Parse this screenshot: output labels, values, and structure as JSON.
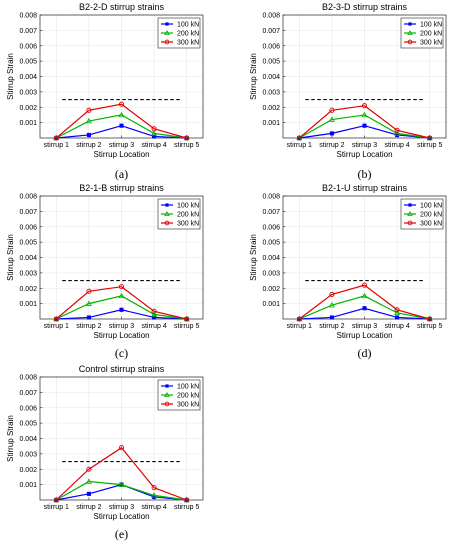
{
  "chart_data": [
    {
      "type": "line",
      "title": "B2-2-D stirrup strains",
      "xlabel": "Stirrup Location",
      "ylabel": "Stirrup Strain",
      "caption": "(a)",
      "categories": [
        "stirrup 1",
        "stirrup 2",
        "stirrup 3",
        "stirrup 4",
        "stirrup 5"
      ],
      "ylim": [
        0,
        0.008
      ],
      "yticks": [
        0.001,
        0.002,
        0.003,
        0.004,
        0.005,
        0.006,
        0.007,
        0.008
      ],
      "ytick_labels": [
        "0.001",
        "0.002",
        "0.003",
        "0.004",
        "0.005",
        "0.006",
        "0.007",
        "0.008"
      ],
      "reference_line": 0.0025,
      "grid": true,
      "legend": "top-right",
      "series": [
        {
          "name": "100 kN",
          "color": "#0000ff",
          "marker": "square",
          "values": [
            0.0,
            0.0002,
            0.0008,
            0.0001,
            0.0
          ]
        },
        {
          "name": "200 kN",
          "color": "#00b400",
          "marker": "triangle",
          "values": [
            0.0,
            0.0011,
            0.0015,
            0.0003,
            0.0
          ]
        },
        {
          "name": "300 kN",
          "color": "#e00000",
          "marker": "circle",
          "values": [
            0.0,
            0.0018,
            0.0022,
            0.0006,
            0.0
          ]
        }
      ]
    },
    {
      "type": "line",
      "title": "B2-3-D stirrup strains",
      "xlabel": "Stirrup Location",
      "ylabel": "Stirrup Strain",
      "caption": "(b)",
      "categories": [
        "stirrup 1",
        "stirrup 2",
        "stirrup 3",
        "stirrup 4",
        "stirrup 5"
      ],
      "ylim": [
        0,
        0.008
      ],
      "yticks": [
        0.001,
        0.002,
        0.003,
        0.004,
        0.005,
        0.006,
        0.007,
        0.008
      ],
      "ytick_labels": [
        "0.001",
        "0.002",
        "0.003",
        "0.004",
        "0.005",
        "0.006",
        "0.007",
        "0.008"
      ],
      "reference_line": 0.0025,
      "grid": true,
      "legend": "top-right",
      "series": [
        {
          "name": "100 kN",
          "color": "#0000ff",
          "marker": "square",
          "values": [
            0.0,
            0.0003,
            0.0008,
            0.0002,
            0.0
          ]
        },
        {
          "name": "200 kN",
          "color": "#00b400",
          "marker": "triangle",
          "values": [
            0.0,
            0.0012,
            0.0015,
            0.0003,
            0.0
          ]
        },
        {
          "name": "300 kN",
          "color": "#e00000",
          "marker": "circle",
          "values": [
            0.0,
            0.0018,
            0.0021,
            0.0005,
            0.0
          ]
        }
      ]
    },
    {
      "type": "line",
      "title": "B2-1-B stirrup strains",
      "xlabel": "Stirrup Location",
      "ylabel": "Stirrup Strain",
      "caption": "(c)",
      "categories": [
        "stirrup 1",
        "stirrup 2",
        "stirrup 3",
        "stirrup 4",
        "stirrup 5"
      ],
      "ylim": [
        0,
        0.008
      ],
      "yticks": [
        0.001,
        0.002,
        0.003,
        0.004,
        0.005,
        0.006,
        0.007,
        0.008
      ],
      "ytick_labels": [
        "0.001",
        "0.002",
        "0.003",
        "0.004",
        "0.005",
        "0.006",
        "0.007",
        "0.008"
      ],
      "reference_line": 0.0025,
      "grid": true,
      "legend": "top-right",
      "series": [
        {
          "name": "100 kN",
          "color": "#0000ff",
          "marker": "square",
          "values": [
            0.0,
            0.0001,
            0.0006,
            0.0001,
            0.0
          ]
        },
        {
          "name": "200 kN",
          "color": "#00b400",
          "marker": "triangle",
          "values": [
            0.0,
            0.001,
            0.0015,
            0.0003,
            0.0
          ]
        },
        {
          "name": "300 kN",
          "color": "#e00000",
          "marker": "circle",
          "values": [
            0.0,
            0.0018,
            0.0021,
            0.0005,
            0.0
          ]
        }
      ]
    },
    {
      "type": "line",
      "title": "B2-1-U stirrup strains",
      "xlabel": "Stirrup Location",
      "ylabel": "Stirrup Strain",
      "caption": "(d)",
      "categories": [
        "stirrup 1",
        "stirrup 2",
        "stirrup 3",
        "stirrup 4",
        "stirrup 5"
      ],
      "ylim": [
        0,
        0.008
      ],
      "yticks": [
        0.001,
        0.002,
        0.003,
        0.004,
        0.005,
        0.006,
        0.007,
        0.008
      ],
      "ytick_labels": [
        "0.001",
        "0.002",
        "0.003",
        "0.004",
        "0.005",
        "0.006",
        "0.007",
        "0.008"
      ],
      "reference_line": 0.0025,
      "grid": true,
      "legend": "top-right",
      "series": [
        {
          "name": "100 kN",
          "color": "#0000ff",
          "marker": "square",
          "values": [
            0.0,
            0.0001,
            0.0007,
            0.0001,
            0.0
          ]
        },
        {
          "name": "200 kN",
          "color": "#00b400",
          "marker": "triangle",
          "values": [
            0.0,
            0.0009,
            0.0015,
            0.0004,
            0.0
          ]
        },
        {
          "name": "300 kN",
          "color": "#e00000",
          "marker": "circle",
          "values": [
            0.0,
            0.0016,
            0.0022,
            0.0006,
            0.0
          ]
        }
      ]
    },
    {
      "type": "line",
      "title": "Control stirrup strains",
      "xlabel": "Stirrup Location",
      "ylabel": "Stirrup Strain",
      "caption": "(e)",
      "categories": [
        "stirrup 1",
        "stirrup 2",
        "stirrup 3",
        "stirrup 4",
        "stirrup 5"
      ],
      "ylim": [
        0,
        0.008
      ],
      "yticks": [
        0.001,
        0.002,
        0.003,
        0.004,
        0.005,
        0.006,
        0.007,
        0.008
      ],
      "ytick_labels": [
        "0.001",
        "0.002",
        "0.003",
        "0.004",
        "0.005",
        "0.006",
        "0.007",
        "0.008"
      ],
      "reference_line": 0.0025,
      "grid": true,
      "legend": "top-right",
      "series": [
        {
          "name": "100 kN",
          "color": "#0000ff",
          "marker": "square",
          "values": [
            0.0,
            0.0004,
            0.001,
            0.0002,
            0.0
          ]
        },
        {
          "name": "200 kN",
          "color": "#00b400",
          "marker": "triangle",
          "values": [
            0.0,
            0.0012,
            0.001,
            0.0003,
            0.0
          ]
        },
        {
          "name": "300 kN",
          "color": "#e00000",
          "marker": "circle",
          "values": [
            0.0,
            0.002,
            0.0034,
            0.0008,
            0.0
          ]
        }
      ]
    }
  ]
}
